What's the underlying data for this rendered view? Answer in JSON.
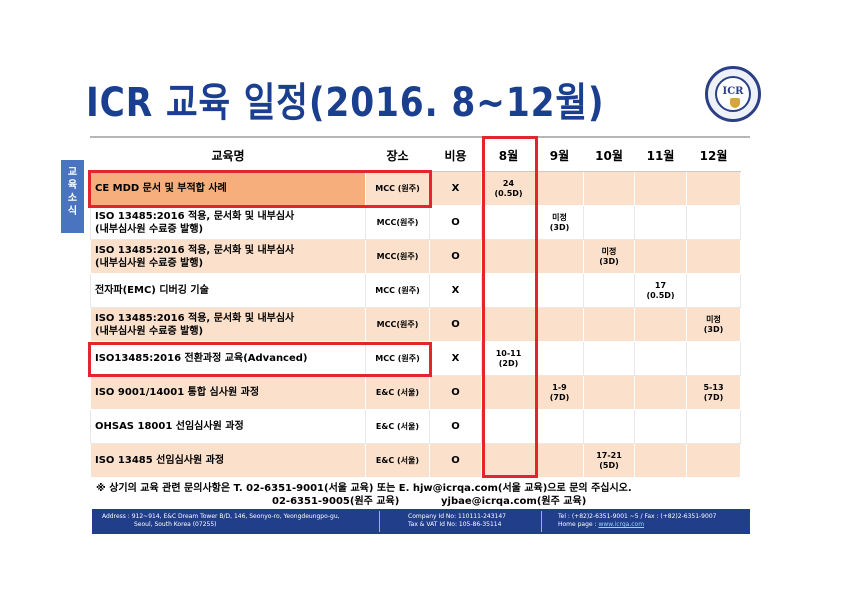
{
  "title": "ICR 교육 일정(2016. 8~12월)",
  "logo_text": "ICR",
  "side_tab": [
    "교",
    "육",
    "소",
    "식"
  ],
  "table": {
    "headers": [
      "교육명",
      "장소",
      "비용",
      "8월",
      "9월",
      "10월",
      "11월",
      "12월"
    ],
    "rows": [
      {
        "course": "CE MDD 문서 및 부적합 사례",
        "venue": "MCC (원주)",
        "cost": "X",
        "months": [
          "24\n(0.5D)",
          "",
          "",
          "",
          ""
        ]
      },
      {
        "course": "ISO 13485:2016 적용, 문서화 및 내부심사\n(내부심사원 수료증 발행)",
        "venue": "MCC(원주)",
        "cost": "O",
        "months": [
          "",
          "미정\n(3D)",
          "",
          "",
          ""
        ]
      },
      {
        "course": "ISO 13485:2016 적용, 문서화 및 내부심사\n(내부심사원 수료증 발행)",
        "venue": "MCC(원주)",
        "cost": "O",
        "months": [
          "",
          "",
          "미정\n(3D)",
          "",
          ""
        ]
      },
      {
        "course": "전자파(EMC) 디버깅 기술",
        "venue": "MCC (원주)",
        "cost": "X",
        "months": [
          "",
          "",
          "",
          "17\n(0.5D)",
          ""
        ]
      },
      {
        "course": "ISO 13485:2016 적용, 문서화 및 내부심사\n(내부심사원 수료증 발행)",
        "venue": "MCC(원주)",
        "cost": "O",
        "months": [
          "",
          "",
          "",
          "",
          "미정\n(3D)"
        ]
      },
      {
        "course": "ISO13485:2016 전환과정 교육(Advanced)",
        "venue": "MCC (원주)",
        "cost": "X",
        "months": [
          "10-11\n(2D)",
          "",
          "",
          "",
          ""
        ]
      },
      {
        "course": "ISO 9001/14001 통합 심사원 과정",
        "venue": "E&C (서울)",
        "cost": "O",
        "months": [
          "",
          "1-9\n(7D)",
          "",
          "",
          "5-13\n(7D)"
        ]
      },
      {
        "course": "OHSAS 18001 선임심사원 과정",
        "venue": "E&C (서울)",
        "cost": "O",
        "months": [
          "",
          "",
          "",
          "",
          ""
        ]
      },
      {
        "course": "ISO 13485 선임심사원 과정",
        "venue": "E&C (서울)",
        "cost": "O",
        "months": [
          "",
          "",
          "17-21\n(5D)",
          "",
          ""
        ]
      }
    ]
  },
  "note": {
    "line1": "※ 상기의 교육 관련 문의사항은 T. 02-6351-9001(서울 교육) 또는 E. hjw@icrqa.com(서울 교육)으로 문의 주십시오.",
    "line2a": "02-6351-9005(원주 교육)",
    "line2b": "yjbae@icrqa.com(원주 교육)"
  },
  "footer": {
    "address1": "Address : 912~914, E&C Dream Tower B/D, 146, Seonyo-ro, Yeongdeungpo-gu,",
    "address2": "Seoul, South Korea (07255)",
    "company_id": "Company Id No: 110111-243147",
    "tax_id": "Tax & VAT Id No: 105-86-35114",
    "tel": "Tel : (+82)2-6351-9001 ~5 / Fax : (+82)2-6351-9007",
    "homepage_label": "Home page : ",
    "homepage": "www.icrqa.com"
  },
  "colors": {
    "title": "#1b3f8f",
    "highlight_border": "#e3262d",
    "row_alt": "#fbe1cc",
    "row_highlight": "#f6ae7c",
    "footer_bg": "#203e8a",
    "side_tab": "#4a74c0"
  }
}
